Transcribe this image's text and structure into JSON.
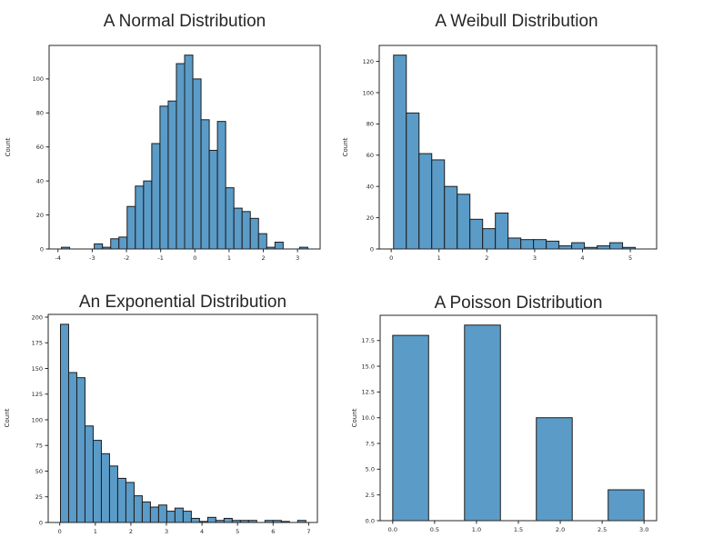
{
  "figure": {
    "kind": "matplotlib-style 2x2 histogram grid",
    "background": "#ffffff"
  },
  "colors": {
    "bar_fill": "#5B9BC7",
    "bar_edge": "#1D1D1D",
    "spine": "#262626",
    "text": "#262626"
  },
  "chart_data": [
    {
      "type": "bar",
      "subtype": "histogram",
      "title": "A Normal Distribution",
      "xlabel": "",
      "ylabel": "Count",
      "bin_start": -3.9,
      "bin_width": 0.24,
      "values": [
        1,
        0,
        0,
        0,
        3,
        1,
        6,
        7,
        25,
        37,
        40,
        62,
        84,
        87,
        109,
        114,
        100,
        76,
        58,
        75,
        36,
        24,
        22,
        18,
        9,
        1,
        4,
        0,
        0,
        1
      ],
      "xlim": [
        -4.26,
        3.66
      ],
      "ylim": [
        0,
        119.7
      ],
      "xticks": [
        -4,
        -3,
        -2,
        -1,
        0,
        1,
        2,
        3
      ],
      "xtick_labels": [
        "-4",
        "-3",
        "-2",
        "-1",
        "0",
        "1",
        "2",
        "3"
      ],
      "yticks": [
        0,
        20,
        40,
        60,
        80,
        100
      ],
      "ytick_labels": [
        "0",
        "20",
        "40",
        "60",
        "80",
        "100"
      ],
      "grid": false,
      "legend": null
    },
    {
      "type": "bar",
      "subtype": "histogram",
      "title": "A Weibull Distribution",
      "xlabel": "",
      "ylabel": "Count",
      "bin_start": 0.05,
      "bin_width": 0.266,
      "values": [
        124,
        87,
        61,
        57,
        40,
        35,
        19,
        13,
        23,
        7,
        6,
        6,
        5,
        2,
        4,
        1,
        2,
        4,
        1
      ],
      "xlim": [
        -0.25,
        5.55
      ],
      "ylim": [
        0,
        130.2
      ],
      "xticks": [
        0,
        1,
        2,
        3,
        4,
        5
      ],
      "xtick_labels": [
        "0",
        "1",
        "2",
        "3",
        "4",
        "5"
      ],
      "yticks": [
        0,
        20,
        40,
        60,
        80,
        100,
        120
      ],
      "ytick_labels": [
        "0",
        "20",
        "40",
        "60",
        "80",
        "100",
        "120"
      ],
      "grid": false,
      "legend": null
    },
    {
      "type": "bar",
      "subtype": "histogram",
      "title": "An Exponential Distribution",
      "xlabel": "",
      "ylabel": "Count",
      "bin_start": 0.02,
      "bin_width": 0.23,
      "values": [
        193,
        146,
        141,
        94,
        80,
        67,
        55,
        43,
        39,
        26,
        20,
        15,
        17,
        11,
        14,
        11,
        4,
        1,
        5,
        2,
        4,
        2,
        2,
        2,
        0,
        2,
        2,
        1,
        0,
        2
      ],
      "xlim": [
        -0.325,
        7.245
      ],
      "ylim": [
        0,
        202.65
      ],
      "xticks": [
        0,
        1,
        2,
        3,
        4,
        5,
        6,
        7
      ],
      "xtick_labels": [
        "0",
        "1",
        "2",
        "3",
        "4",
        "5",
        "6",
        "7"
      ],
      "yticks": [
        0,
        25,
        50,
        75,
        100,
        125,
        150,
        175,
        200
      ],
      "ytick_labels": [
        "0",
        "25",
        "50",
        "75",
        "100",
        "125",
        "150",
        "175",
        "200"
      ],
      "grid": false,
      "legend": null
    },
    {
      "type": "bar",
      "subtype": "histogram",
      "title": "A Poisson Distribution",
      "xlabel": "",
      "ylabel": "Count",
      "bin_start": 0,
      "bin_width": 0.42857,
      "values": [
        18,
        0,
        19,
        0,
        10,
        0,
        3
      ],
      "xlim": [
        -0.15,
        3.15
      ],
      "ylim": [
        0,
        19.95
      ],
      "xticks": [
        0,
        0.5,
        1,
        1.5,
        2,
        2.5,
        3
      ],
      "xtick_labels": [
        "0.0",
        "0.5",
        "1.0",
        "1.5",
        "2.0",
        "2.5",
        "3.0"
      ],
      "yticks": [
        0,
        2.5,
        5,
        7.5,
        10,
        12.5,
        15,
        17.5
      ],
      "ytick_labels": [
        "0.0",
        "2.5",
        "5.0",
        "7.5",
        "10.0",
        "12.5",
        "15.0",
        "17.5"
      ],
      "grid": false,
      "legend": null
    }
  ]
}
